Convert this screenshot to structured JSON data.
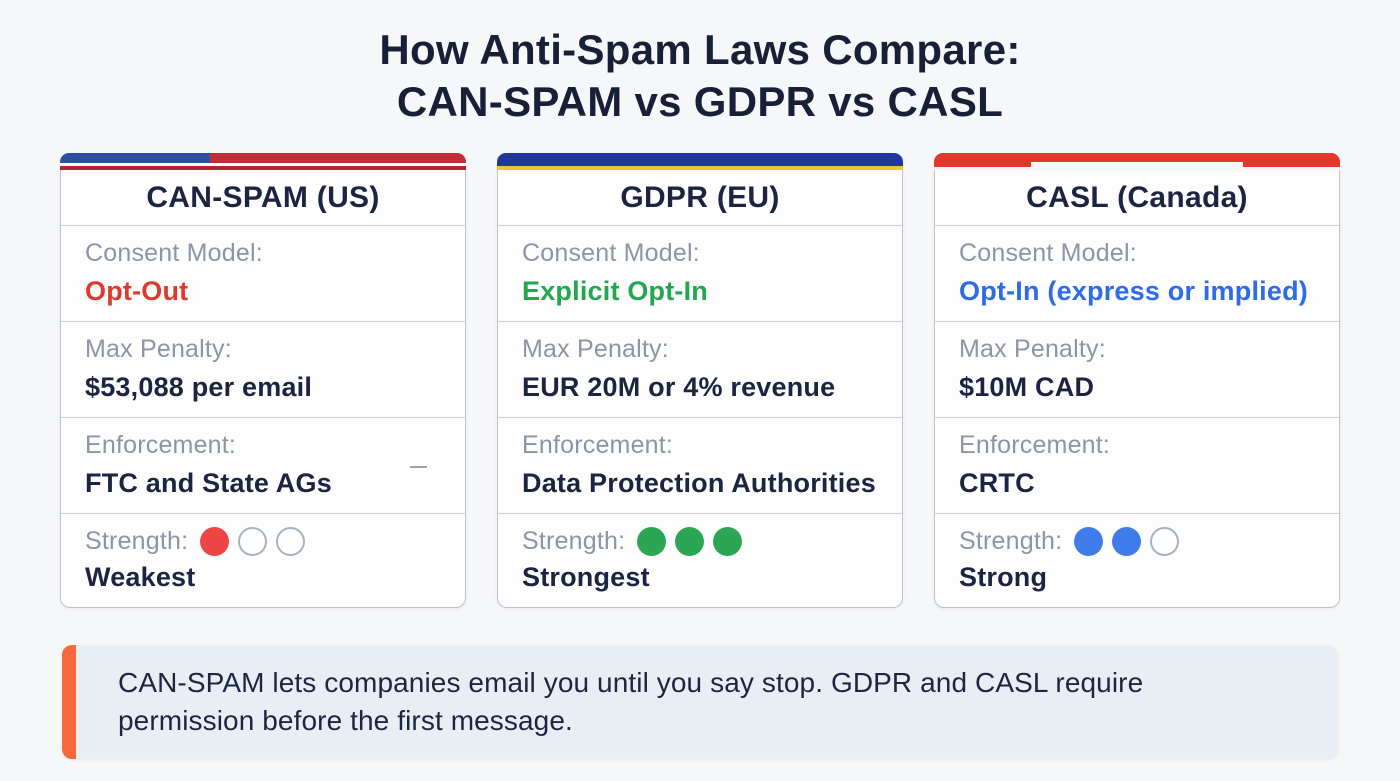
{
  "title": {
    "line1": "How Anti-Spam Laws Compare:",
    "line2": "CAN-SPAM vs GDPR vs CASL"
  },
  "cards": [
    {
      "id": "can-spam-us",
      "flag": "us",
      "header": "CAN-SPAM (US)",
      "consent": {
        "label": "Consent Model:",
        "value": "Opt-Out",
        "value_color": "#dd3a2e"
      },
      "penalty": {
        "label": "Max Penalty:",
        "value": "$53,088 per email"
      },
      "enforcement": {
        "label": "Enforcement:",
        "value": "FTC and State AGs"
      },
      "strength": {
        "label": "Strength:",
        "dots": {
          "filled": 1,
          "total": 3,
          "color": "#ef4444"
        },
        "value": "Weakest"
      }
    },
    {
      "id": "gdpr-eu",
      "flag": "eu",
      "header": "GDPR (EU)",
      "consent": {
        "label": "Consent Model:",
        "value": "Explicit Opt-In",
        "value_color": "#21a74f"
      },
      "penalty": {
        "label": "Max Penalty:",
        "value": "EUR 20M or 4% revenue"
      },
      "enforcement": {
        "label": "Enforcement:",
        "value": "Data Protection Authorities"
      },
      "strength": {
        "label": "Strength:",
        "dots": {
          "filled": 3,
          "total": 3,
          "color": "#2aa655"
        },
        "value": "Strongest"
      }
    },
    {
      "id": "casl-canada",
      "flag": "ca",
      "header": "CASL (Canada)",
      "consent": {
        "label": "Consent Model:",
        "value": "Opt-In (express or implied)",
        "value_color": "#2e6be6"
      },
      "penalty": {
        "label": "Max Penalty:",
        "value": "$10M CAD"
      },
      "enforcement": {
        "label": "Enforcement:",
        "value": "CRTC"
      },
      "strength": {
        "label": "Strength:",
        "dots": {
          "filled": 2,
          "total": 3,
          "color": "#3f7cea"
        },
        "value": "Strong"
      }
    }
  ],
  "callout": {
    "text": "CAN-SPAM lets companies email you until you say stop. GDPR and CASL require permission before the first message."
  },
  "colors": {
    "page_background": "#f6f7f8",
    "title_navy": "#182038",
    "value_navy": "#1b2440",
    "label_grey": "#8c95a6",
    "red_text": "#dd3a2e",
    "green_text": "#21a74f",
    "blue_text": "#2e6be6",
    "red_dot": "#ef4444",
    "green_dot": "#2aa655",
    "blue_dot": "#3f7cea",
    "empty_dot_border": "#a9b1c0",
    "us_bar_blue": "#2d4f9e",
    "us_bar_red": "#bf2f37",
    "eu_bar_blue": "#20389b",
    "eu_bar_yellow": "#efc337",
    "ca_bar_red": "#e0392b",
    "callout_background": "#e9edf4",
    "callout_accent_orange": "#f46a3c",
    "card_border": "#bcc3cf"
  }
}
